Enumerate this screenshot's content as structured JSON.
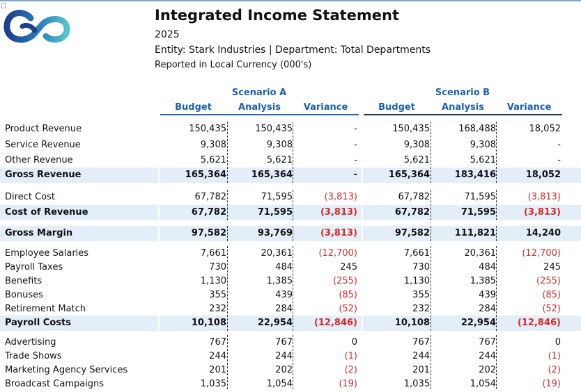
{
  "report": {
    "title": "Integrated Income Statement",
    "year": "2025",
    "entity_line": "Entity: Stark Industries | Department: Total Departments",
    "currency_line": "Reported in Local Currency (000's)"
  },
  "colors": {
    "header_blue": "#1f5fa8",
    "total_band": "#e3eef8",
    "negative": "#d42a2a"
  },
  "columns": {
    "scenario_a": "Scenario A",
    "scenario_b": "Scenario B",
    "budget": "Budget",
    "analysis": "Analysis",
    "variance": "Variance"
  },
  "rows": [
    {
      "label": "Product Revenue",
      "a_budget": "150,435",
      "a_analysis": "150,435",
      "a_variance": "-",
      "b_budget": "150,435",
      "b_analysis": "168,488",
      "b_variance": "18,052",
      "total": false
    },
    {
      "label": "Service Revenue",
      "a_budget": "9,308",
      "a_analysis": "9,308",
      "a_variance": "-",
      "b_budget": "9,308",
      "b_analysis": "9,308",
      "b_variance": "-",
      "total": false
    },
    {
      "label": "Other Revenue",
      "a_budget": "5,621",
      "a_analysis": "5,621",
      "a_variance": "-",
      "b_budget": "5,621",
      "b_analysis": "5,621",
      "b_variance": "-",
      "total": false
    },
    {
      "label": "Gross Revenue",
      "a_budget": "165,364",
      "a_analysis": "165,364",
      "a_variance": "-",
      "b_budget": "165,364",
      "b_analysis": "183,416",
      "b_variance": "18,052",
      "total": true
    },
    {
      "label": "Direct Cost",
      "a_budget": "67,782",
      "a_analysis": "71,595",
      "a_variance": "(3,813)",
      "b_budget": "67,782",
      "b_analysis": "71,595",
      "b_variance": "(3,813)",
      "total": false
    },
    {
      "label": "Cost of Revenue",
      "a_budget": "67,782",
      "a_analysis": "71,595",
      "a_variance": "(3,813)",
      "b_budget": "67,782",
      "b_analysis": "71,595",
      "b_variance": "(3,813)",
      "total": true
    },
    {
      "label": "Gross Margin",
      "a_budget": "97,582",
      "a_analysis": "93,769",
      "a_variance": "(3,813)",
      "b_budget": "97,582",
      "b_analysis": "111,821",
      "b_variance": "14,240",
      "total": true
    },
    {
      "label": "Employee Salaries",
      "a_budget": "7,661",
      "a_analysis": "20,361",
      "a_variance": "(12,700)",
      "b_budget": "7,661",
      "b_analysis": "20,361",
      "b_variance": "(12,700)",
      "total": false
    },
    {
      "label": "Payroll Taxes",
      "a_budget": "730",
      "a_analysis": "484",
      "a_variance": "245",
      "b_budget": "730",
      "b_analysis": "484",
      "b_variance": "245",
      "total": false
    },
    {
      "label": "Benefits",
      "a_budget": "1,130",
      "a_analysis": "1,385",
      "a_variance": "(255)",
      "b_budget": "1,130",
      "b_analysis": "1,385",
      "b_variance": "(255)",
      "total": false
    },
    {
      "label": "Bonuses",
      "a_budget": "355",
      "a_analysis": "439",
      "a_variance": "(85)",
      "b_budget": "355",
      "b_analysis": "439",
      "b_variance": "(85)",
      "total": false
    },
    {
      "label": "Retirement Match",
      "a_budget": "232",
      "a_analysis": "284",
      "a_variance": "(52)",
      "b_budget": "232",
      "b_analysis": "284",
      "b_variance": "(52)",
      "total": false
    },
    {
      "label": "Payroll Costs",
      "a_budget": "10,108",
      "a_analysis": "22,954",
      "a_variance": "(12,846)",
      "b_budget": "10,108",
      "b_analysis": "22,954",
      "b_variance": "(12,846)",
      "total": true
    },
    {
      "label": "Advertising",
      "a_budget": "767",
      "a_analysis": "767",
      "a_variance": "0",
      "b_budget": "767",
      "b_analysis": "767",
      "b_variance": "0",
      "total": false
    },
    {
      "label": "Trade Shows",
      "a_budget": "244",
      "a_analysis": "244",
      "a_variance": "(1)",
      "b_budget": "244",
      "b_analysis": "244",
      "b_variance": "(1)",
      "total": false
    },
    {
      "label": "Marketing Agency Services",
      "a_budget": "201",
      "a_analysis": "202",
      "a_variance": "(2)",
      "b_budget": "201",
      "b_analysis": "202",
      "b_variance": "(2)",
      "total": false
    },
    {
      "label": "Broadcast Campaigns",
      "a_budget": "1,035",
      "a_analysis": "1,054",
      "a_variance": "(19)",
      "b_budget": "1,035",
      "b_analysis": "1,054",
      "b_variance": "(19)",
      "total": false
    }
  ]
}
